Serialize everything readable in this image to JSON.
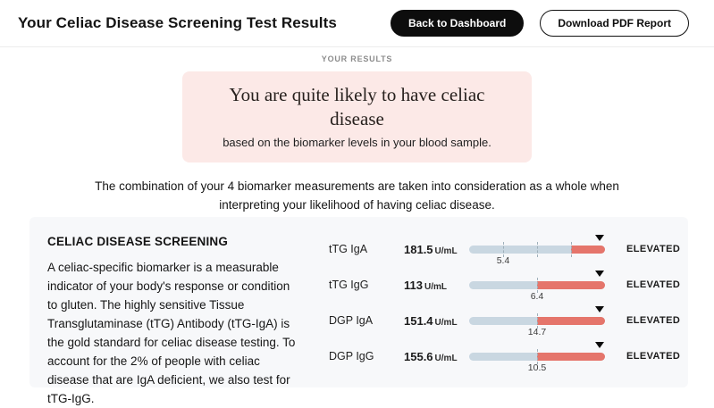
{
  "header": {
    "title": "Your Celiac Disease Screening Test Results",
    "back_button": "Back to Dashboard",
    "download_button": "Download PDF Report"
  },
  "results": {
    "section_label": "YOUR RESULTS",
    "verdict_title": "You are quite likely to have celiac disease",
    "verdict_sub": "based on the biomarker levels in your blood sample.",
    "interpretation": "The combination of your 4 biomarker measurements are taken into consideration as a whole when interpreting your likelihood of having celiac disease."
  },
  "card": {
    "title": "CELIAC DISEASE SCREENING",
    "description": "A celiac-specific biomarker is a measurable indicator of your body's response or condition to gluten. The highly sensitive Tissue Transglutaminase (tTG) Antibody (tTG-IgA) is the gold standard for celiac disease testing. To account for the 2% of people with celiac disease that are IgA deficient, we also test for tTG-IgG.",
    "biomarkers": [
      {
        "name": "tTG IgA",
        "value": "181.5",
        "unit": "U/mL",
        "threshold_label": "5.4",
        "threshold_pos_pct": 25,
        "ticks_pct": [
          25,
          50,
          75
        ],
        "elevated_start_pct": 75,
        "marker_pos_pct": 96,
        "status": "ELEVATED"
      },
      {
        "name": "tTG IgG",
        "value": "113",
        "unit": "U/mL",
        "threshold_label": "6.4",
        "threshold_pos_pct": 50,
        "ticks_pct": [
          50
        ],
        "elevated_start_pct": 50,
        "marker_pos_pct": 96,
        "status": "ELEVATED"
      },
      {
        "name": "DGP IgA",
        "value": "151.4",
        "unit": "U/mL",
        "threshold_label": "14.7",
        "threshold_pos_pct": 50,
        "ticks_pct": [
          50
        ],
        "elevated_start_pct": 50,
        "marker_pos_pct": 96,
        "status": "ELEVATED"
      },
      {
        "name": "DGP IgG",
        "value": "155.6",
        "unit": "U/mL",
        "threshold_label": "10.5",
        "threshold_pos_pct": 50,
        "ticks_pct": [
          50
        ],
        "elevated_start_pct": 50,
        "marker_pos_pct": 96,
        "status": "ELEVATED"
      }
    ]
  },
  "colors": {
    "bar_track": "#c9d7e1",
    "bar_elevated": "#e5756b",
    "verdict_bg": "#fce9e7",
    "card_bg": "#f7f8fa"
  }
}
